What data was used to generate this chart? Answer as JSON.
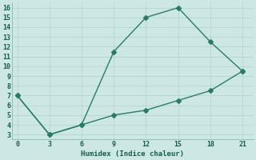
{
  "line1_x": [
    0,
    3,
    6,
    9,
    12,
    15,
    18,
    21
  ],
  "line1_y": [
    7,
    3,
    4,
    11.5,
    15,
    16,
    12.5,
    9.5
  ],
  "line2_x": [
    0,
    3,
    6,
    9,
    12,
    15,
    18,
    21
  ],
  "line2_y": [
    7,
    3,
    4,
    5,
    5.5,
    6.5,
    7.5,
    9.5
  ],
  "line_color": "#2a7a6a",
  "bg_color": "#cde8e4",
  "grid_color": "#b8d8d4",
  "xlabel": "Humidex (Indice chaleur)",
  "xlim": [
    -0.5,
    22
  ],
  "ylim": [
    2.5,
    16.5
  ],
  "xticks": [
    0,
    3,
    6,
    9,
    12,
    15,
    18,
    21
  ],
  "yticks": [
    3,
    4,
    5,
    6,
    7,
    8,
    9,
    10,
    11,
    12,
    13,
    14,
    15,
    16
  ],
  "marker": "D",
  "marker_size": 3,
  "line_width": 1.0
}
